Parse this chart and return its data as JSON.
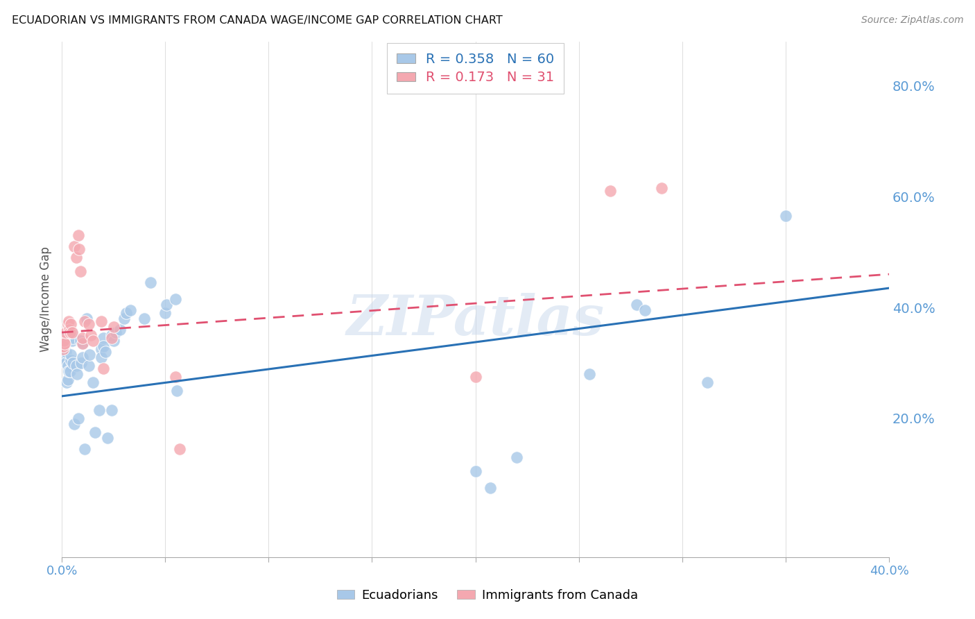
{
  "title": "ECUADORIAN VS IMMIGRANTS FROM CANADA WAGE/INCOME GAP CORRELATION CHART",
  "source": "Source: ZipAtlas.com",
  "ylabel": "Wage/Income Gap",
  "right_yticks": [
    20.0,
    40.0,
    60.0,
    80.0
  ],
  "watermark": "ZIPatlas",
  "legend_blue_r": "0.358",
  "legend_blue_n": "60",
  "legend_pink_r": "0.173",
  "legend_pink_n": "31",
  "blue_color": "#a8c8e8",
  "pink_color": "#f4a8b0",
  "line_blue": "#2971b5",
  "line_pink": "#e05070",
  "blue_scatter": [
    [
      0.0005,
      0.32
    ],
    [
      0.0008,
      0.31
    ],
    [
      0.001,
      0.33
    ],
    [
      0.0012,
      0.345
    ],
    [
      0.002,
      0.3
    ],
    [
      0.002,
      0.32
    ],
    [
      0.0022,
      0.265
    ],
    [
      0.003,
      0.27
    ],
    [
      0.003,
      0.295
    ],
    [
      0.0032,
      0.285
    ],
    [
      0.004,
      0.285
    ],
    [
      0.0042,
      0.305
    ],
    [
      0.0045,
      0.315
    ],
    [
      0.0047,
      0.355
    ],
    [
      0.005,
      0.34
    ],
    [
      0.0052,
      0.345
    ],
    [
      0.0055,
      0.3
    ],
    [
      0.006,
      0.19
    ],
    [
      0.007,
      0.295
    ],
    [
      0.0072,
      0.28
    ],
    [
      0.008,
      0.2
    ],
    [
      0.009,
      0.34
    ],
    [
      0.0092,
      0.3
    ],
    [
      0.01,
      0.31
    ],
    [
      0.0102,
      0.335
    ],
    [
      0.011,
      0.145
    ],
    [
      0.012,
      0.38
    ],
    [
      0.013,
      0.295
    ],
    [
      0.0133,
      0.315
    ],
    [
      0.015,
      0.265
    ],
    [
      0.016,
      0.175
    ],
    [
      0.018,
      0.215
    ],
    [
      0.019,
      0.325
    ],
    [
      0.0192,
      0.31
    ],
    [
      0.02,
      0.345
    ],
    [
      0.0202,
      0.33
    ],
    [
      0.021,
      0.32
    ],
    [
      0.022,
      0.165
    ],
    [
      0.024,
      0.215
    ],
    [
      0.0242,
      0.35
    ],
    [
      0.025,
      0.34
    ],
    [
      0.026,
      0.355
    ],
    [
      0.028,
      0.36
    ],
    [
      0.03,
      0.38
    ],
    [
      0.031,
      0.39
    ],
    [
      0.033,
      0.395
    ],
    [
      0.04,
      0.38
    ],
    [
      0.043,
      0.445
    ],
    [
      0.05,
      0.39
    ],
    [
      0.0505,
      0.405
    ],
    [
      0.055,
      0.415
    ],
    [
      0.0555,
      0.25
    ],
    [
      0.2,
      0.105
    ],
    [
      0.207,
      0.075
    ],
    [
      0.22,
      0.13
    ],
    [
      0.255,
      0.28
    ],
    [
      0.278,
      0.405
    ],
    [
      0.282,
      0.395
    ],
    [
      0.312,
      0.265
    ],
    [
      0.35,
      0.565
    ]
  ],
  "pink_scatter": [
    [
      0.0005,
      0.325
    ],
    [
      0.0008,
      0.33
    ],
    [
      0.001,
      0.34
    ],
    [
      0.0012,
      0.335
    ],
    [
      0.002,
      0.355
    ],
    [
      0.003,
      0.37
    ],
    [
      0.0032,
      0.375
    ],
    [
      0.0035,
      0.36
    ],
    [
      0.004,
      0.355
    ],
    [
      0.0042,
      0.37
    ],
    [
      0.005,
      0.355
    ],
    [
      0.006,
      0.51
    ],
    [
      0.007,
      0.49
    ],
    [
      0.008,
      0.53
    ],
    [
      0.0082,
      0.505
    ],
    [
      0.009,
      0.465
    ],
    [
      0.01,
      0.335
    ],
    [
      0.0102,
      0.345
    ],
    [
      0.011,
      0.375
    ],
    [
      0.013,
      0.37
    ],
    [
      0.014,
      0.35
    ],
    [
      0.015,
      0.34
    ],
    [
      0.019,
      0.375
    ],
    [
      0.02,
      0.29
    ],
    [
      0.024,
      0.345
    ],
    [
      0.025,
      0.365
    ],
    [
      0.055,
      0.275
    ],
    [
      0.057,
      0.145
    ],
    [
      0.2,
      0.275
    ],
    [
      0.265,
      0.61
    ],
    [
      0.29,
      0.615
    ]
  ],
  "xlim": [
    0.0,
    0.4
  ],
  "ylim": [
    -0.05,
    0.88
  ],
  "blue_line_x": [
    0.0,
    0.4
  ],
  "blue_line_y": [
    0.24,
    0.435
  ],
  "pink_line_x": [
    0.0,
    0.4
  ],
  "pink_line_y": [
    0.355,
    0.46
  ],
  "background": "#ffffff",
  "grid_color": "#d0d0d0",
  "tick_label_color": "#5b9bd5"
}
